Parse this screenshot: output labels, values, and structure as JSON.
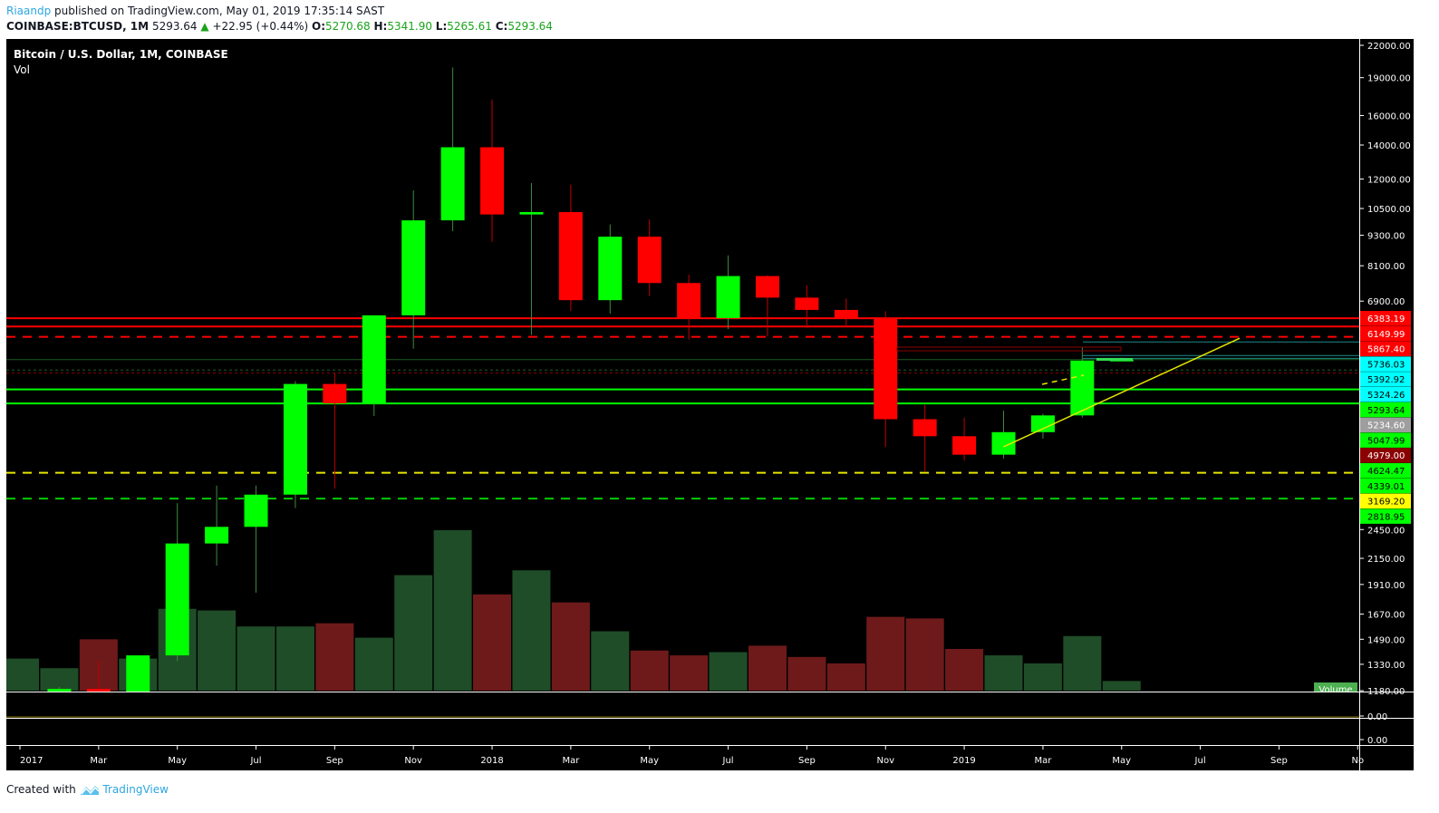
{
  "header": {
    "user": "Riaandp",
    "published": "published on TradingView.com, May 01, 2019 17:35:14 SAST",
    "symbol": "COINBASE:BTCUSD, 1M",
    "last": "5293.64",
    "change": "+22.95 (+0.44%)",
    "o_label": "O:",
    "o": "5270.68",
    "h_label": "H:",
    "h": "5341.90",
    "l_label": "L:",
    "l": "5265.61",
    "c_label": "C:",
    "c": "5293.64"
  },
  "chart_title": "Bitcoin / U.S. Dollar, 1M, COINBASE",
  "indicator_label": "Vol",
  "volume_badge": "Volume",
  "footer": {
    "created_with": "Created with",
    "brand": "TradingView"
  },
  "colors": {
    "up": "#00ff00",
    "down": "#ff0000",
    "vol_up": "#1f4d28",
    "vol_down": "#6e1a1a",
    "background": "#000000",
    "trendline": "#e6e600"
  },
  "chart_data": {
    "type": "candlestick",
    "title": "Bitcoin / U.S. Dollar, 1M, COINBASE",
    "y_scale": "log",
    "ylim": [
      1180,
      22000
    ],
    "grid": false,
    "price_ticks": [
      "22000.00",
      "19000.00",
      "16000.00",
      "14000.00",
      "12000.00",
      "10500.00",
      "9300.00",
      "8100.00",
      "6900.00",
      "2450.00",
      "2150.00",
      "1910.00",
      "1670.00",
      "1490.00",
      "1330.00",
      "1180.00"
    ],
    "sub_pane_ticks": [
      "0.00",
      "0.00"
    ],
    "time_ticks": [
      {
        "date": "2017-01",
        "label": "2017"
      },
      {
        "date": "2017-03",
        "label": "Mar"
      },
      {
        "date": "2017-05",
        "label": "May"
      },
      {
        "date": "2017-07",
        "label": "Jul"
      },
      {
        "date": "2017-09",
        "label": "Sep"
      },
      {
        "date": "2017-11",
        "label": "Nov"
      },
      {
        "date": "2018-01",
        "label": "2018"
      },
      {
        "date": "2018-03",
        "label": "Mar"
      },
      {
        "date": "2018-05",
        "label": "May"
      },
      {
        "date": "2018-07",
        "label": "Jul"
      },
      {
        "date": "2018-09",
        "label": "Sep"
      },
      {
        "date": "2018-11",
        "label": "Nov"
      },
      {
        "date": "2019-01",
        "label": "2019"
      },
      {
        "date": "2019-03",
        "label": "Mar"
      },
      {
        "date": "2019-05",
        "label": "May"
      },
      {
        "date": "2019-07",
        "label": "Jul"
      },
      {
        "date": "2019-09",
        "label": "Sep"
      },
      {
        "date": "2019-11",
        "label": "No"
      }
    ],
    "candles": [
      {
        "date": "2017-01",
        "o": 966,
        "h": 1150,
        "l": 751,
        "c": 970,
        "vol": 20
      },
      {
        "date": "2017-02",
        "o": 970,
        "h": 1200,
        "l": 920,
        "c": 1190,
        "vol": 14
      },
      {
        "date": "2017-03",
        "o": 1190,
        "h": 1350,
        "l": 890,
        "c": 1080,
        "vol": 32
      },
      {
        "date": "2017-04",
        "o": 1080,
        "h": 1385,
        "l": 1060,
        "c": 1385,
        "vol": 20
      },
      {
        "date": "2017-05",
        "o": 1385,
        "h": 2760,
        "l": 1350,
        "c": 2300,
        "vol": 51
      },
      {
        "date": "2017-06",
        "o": 2300,
        "h": 2990,
        "l": 2080,
        "c": 2480,
        "vol": 50
      },
      {
        "date": "2017-07",
        "o": 2480,
        "h": 2990,
        "l": 1840,
        "c": 2870,
        "vol": 40
      },
      {
        "date": "2017-08",
        "o": 2870,
        "h": 4800,
        "l": 2700,
        "c": 4740,
        "vol": 40
      },
      {
        "date": "2017-09",
        "o": 4740,
        "h": 4980,
        "l": 2950,
        "c": 4340,
        "vol": 42
      },
      {
        "date": "2017-10",
        "o": 4340,
        "h": 6470,
        "l": 4100,
        "c": 6470,
        "vol": 33
      },
      {
        "date": "2017-11",
        "o": 6470,
        "h": 11400,
        "l": 5560,
        "c": 9950,
        "vol": 72
      },
      {
        "date": "2017-12",
        "o": 9950,
        "h": 19890,
        "l": 9470,
        "c": 13860,
        "vol": 100
      },
      {
        "date": "2018-01",
        "o": 13860,
        "h": 17200,
        "l": 9030,
        "c": 10220,
        "vol": 60
      },
      {
        "date": "2018-02",
        "o": 10220,
        "h": 11790,
        "l": 5920,
        "c": 10330,
        "vol": 75
      },
      {
        "date": "2018-03",
        "o": 10330,
        "h": 11700,
        "l": 6600,
        "c": 6930,
        "vol": 55
      },
      {
        "date": "2018-04",
        "o": 6930,
        "h": 9770,
        "l": 6520,
        "c": 9240,
        "vol": 37
      },
      {
        "date": "2018-05",
        "o": 9240,
        "h": 9990,
        "l": 7060,
        "c": 7490,
        "vol": 25
      },
      {
        "date": "2018-06",
        "o": 7490,
        "h": 7780,
        "l": 5800,
        "c": 6390,
        "vol": 22
      },
      {
        "date": "2018-07",
        "o": 6390,
        "h": 8490,
        "l": 6080,
        "c": 7730,
        "vol": 24
      },
      {
        "date": "2018-08",
        "o": 7730,
        "h": 7760,
        "l": 5880,
        "c": 7010,
        "vol": 28
      },
      {
        "date": "2018-09",
        "o": 7010,
        "h": 7410,
        "l": 6110,
        "c": 6630,
        "vol": 21
      },
      {
        "date": "2018-10",
        "o": 6630,
        "h": 6980,
        "l": 6120,
        "c": 6370,
        "vol": 17
      },
      {
        "date": "2018-11",
        "o": 6370,
        "h": 6590,
        "l": 3560,
        "c": 4040,
        "vol": 46
      },
      {
        "date": "2018-12",
        "o": 4040,
        "h": 4310,
        "l": 3190,
        "c": 3740,
        "vol": 45
      },
      {
        "date": "2019-01",
        "o": 3740,
        "h": 4070,
        "l": 3350,
        "c": 3440,
        "vol": 26
      },
      {
        "date": "2019-02",
        "o": 3440,
        "h": 4200,
        "l": 3380,
        "c": 3810,
        "vol": 22
      },
      {
        "date": "2019-03",
        "o": 3810,
        "h": 4140,
        "l": 3700,
        "c": 4110,
        "vol": 17
      },
      {
        "date": "2019-04",
        "o": 4110,
        "h": 5600,
        "l": 4070,
        "c": 5270,
        "vol": 34
      },
      {
        "date": "2019-05",
        "o": 5270.68,
        "h": 5341.9,
        "l": 5265.61,
        "c": 5293.64,
        "vol": 6
      }
    ],
    "levels": [
      {
        "price": 6383.19,
        "label": "6383.19",
        "line": "#ff0000",
        "style": "solid",
        "bg": "#ff0000",
        "fg": "#ffffff"
      },
      {
        "price": 6149.99,
        "label": "6149.99",
        "line": "#ff0000",
        "style": "solid",
        "bg": "#ff0000",
        "fg": "#ffffff"
      },
      {
        "price": 5867.4,
        "label": "5867.40",
        "line": "#ff0000",
        "style": "dashed",
        "bg": "#ff0000",
        "fg": "#ffffff"
      },
      {
        "price": 5736.03,
        "label": "5736.03",
        "line": "#1a8a8a",
        "style": "partial",
        "bg": "#00ffff",
        "fg": "#000000"
      },
      {
        "price": 5392.92,
        "label": "5392.92",
        "line": "#1a8a8a",
        "style": "partial",
        "bg": "#00ffff",
        "fg": "#000000"
      },
      {
        "price": 5324.26,
        "label": "5324.26",
        "line": "#1a8a8a",
        "style": "partial",
        "bg": "#00ffff",
        "fg": "#000000"
      },
      {
        "price": 5293.64,
        "label": "5293.64",
        "line": "#1b5e20",
        "style": "thin",
        "bg": "#00ff00",
        "fg": "#000000"
      },
      {
        "price": 5234.6,
        "label": "5234.60",
        "line": "#777777",
        "style": "none",
        "bg": "#9e9e9e",
        "fg": "#ffffff"
      },
      {
        "price": 5047.99,
        "label": "5047.99",
        "line": "#1b5e20",
        "style": "dotted",
        "bg": "#00ff00",
        "fg": "#000000"
      },
      {
        "price": 4979.0,
        "label": "4979.00",
        "line": "#8b0000",
        "style": "dotted",
        "bg": "#8b0000",
        "fg": "#ffffff"
      },
      {
        "price": 4624.47,
        "label": "4624.47",
        "line": "#00ff00",
        "style": "solid",
        "bg": "#00ff00",
        "fg": "#000000"
      },
      {
        "price": 4339.01,
        "label": "4339.01",
        "line": "#00ff00",
        "style": "solid",
        "bg": "#00ff00",
        "fg": "#000000"
      },
      {
        "price": 3169.2,
        "label": "3169.20",
        "line": "#e6e600",
        "style": "dashed",
        "bg": "#ffff00",
        "fg": "#000000"
      },
      {
        "price": 2818.95,
        "label": "2818.95",
        "line": "#00cc00",
        "style": "dashed",
        "bg": "#00ff00",
        "fg": "#000000"
      }
    ],
    "trendline": {
      "from": {
        "date": "2019-02",
        "price": 3565
      },
      "to": {
        "date": "2019-08",
        "price": 5830
      },
      "color": "#e6e600"
    }
  }
}
